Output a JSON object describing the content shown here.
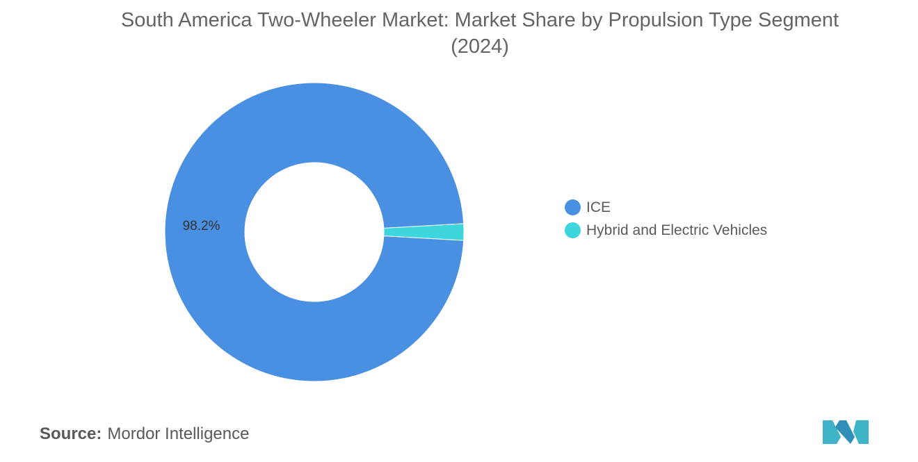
{
  "title": "South America Two-Wheeler Market: Market Share by Propulsion Type Segment (2024)",
  "chart_data": {
    "type": "pie",
    "variant": "donut",
    "series": [
      {
        "name": "ICE",
        "value": 98.2,
        "label": "98.2%",
        "color": "#4a90e2"
      },
      {
        "name": "Hybrid and Electric Vehicles",
        "value": 1.8,
        "label": "",
        "color": "#3dd6dc"
      }
    ],
    "legend_position": "right"
  },
  "source": {
    "label": "Source:",
    "text": "Mordor Intelligence"
  },
  "logo": {
    "icon": "mordor-intelligence-logo",
    "color": "#3fb4c8"
  }
}
